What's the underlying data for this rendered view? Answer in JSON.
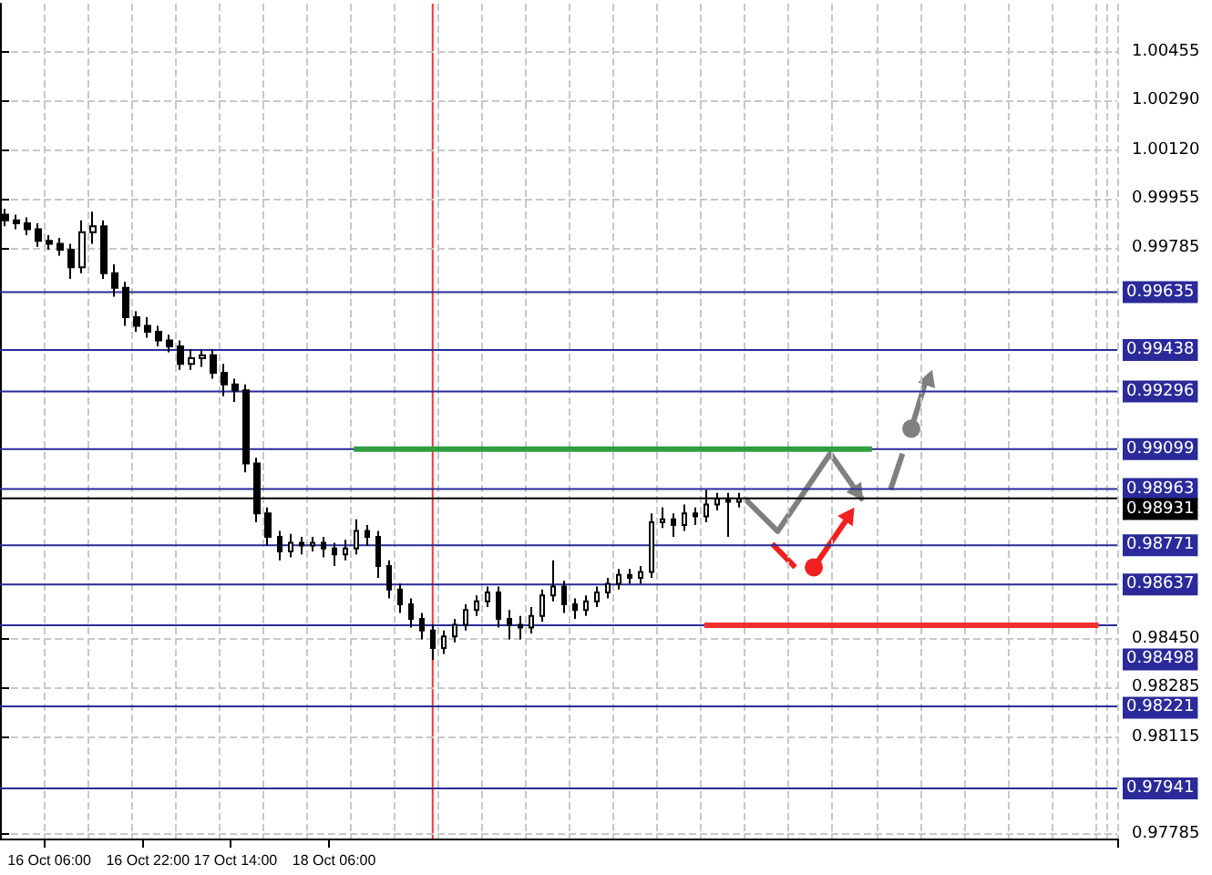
{
  "chart_data": {
    "type": "candlestick",
    "color": "#000000",
    "grid": true,
    "categories": [
      null,
      null,
      null,
      null,
      "16 Oct 06:00",
      null,
      null,
      null,
      null,
      null,
      null,
      null,
      null,
      "16 Oct 22:00",
      null,
      null,
      null,
      null,
      null,
      null,
      null,
      "17 Oct 14:00",
      null,
      null,
      null,
      null,
      null,
      null,
      null,
      null,
      "18 Oct 06:00",
      null,
      null,
      null,
      null,
      null,
      null,
      null,
      null,
      null,
      null,
      null,
      null,
      null,
      null,
      null,
      null,
      null,
      null,
      null,
      null,
      null,
      null,
      null,
      null,
      null,
      null,
      null,
      null,
      null,
      null,
      null,
      null,
      null,
      null,
      null,
      null,
      null,
      null,
      null,
      null,
      null,
      null,
      null,
      null,
      null,
      null,
      null,
      null,
      null,
      null,
      null,
      null,
      null,
      null,
      null,
      null,
      null,
      null,
      null,
      null,
      null,
      null,
      null,
      null,
      null,
      null,
      null,
      null,
      null,
      null,
      null
    ],
    "ohlc": [
      [
        0.999,
        0.9992,
        0.9986,
        0.9988
      ],
      [
        0.9988,
        0.999,
        0.9985,
        0.9987
      ],
      [
        0.9987,
        0.9989,
        0.9983,
        0.9985
      ],
      [
        0.9985,
        0.9987,
        0.9979,
        0.9981
      ],
      [
        0.9981,
        0.9983,
        0.9978,
        0.998
      ],
      [
        0.998,
        0.9982,
        0.9976,
        0.9978
      ],
      [
        0.9978,
        0.998,
        0.9968,
        0.9972
      ],
      [
        0.9972,
        0.9988,
        0.997,
        0.9984
      ],
      [
        0.9984,
        0.9991,
        0.998,
        0.9986
      ],
      [
        0.9986,
        0.9988,
        0.9968,
        0.997
      ],
      [
        0.997,
        0.9973,
        0.9962,
        0.9965
      ],
      [
        0.9965,
        0.9967,
        0.9952,
        0.9955
      ],
      [
        0.9955,
        0.9957,
        0.995,
        0.9952
      ],
      [
        0.9952,
        0.9955,
        0.9948,
        0.995
      ],
      [
        0.995,
        0.9952,
        0.9945,
        0.9947
      ],
      [
        0.9947,
        0.9949,
        0.9943,
        0.9945
      ],
      [
        0.9945,
        0.9947,
        0.9937,
        0.9939
      ],
      [
        0.9939,
        0.9944,
        0.9937,
        0.9941
      ],
      [
        0.9941,
        0.9944,
        0.9938,
        0.9942
      ],
      [
        0.9942,
        0.9944,
        0.9934,
        0.9936
      ],
      [
        0.9936,
        0.9939,
        0.9928,
        0.9932
      ],
      [
        0.9932,
        0.9934,
        0.9926,
        0.993
      ],
      [
        0.993,
        0.9932,
        0.9902,
        0.9905
      ],
      [
        0.9905,
        0.9907,
        0.9885,
        0.9888
      ],
      [
        0.9888,
        0.989,
        0.9877,
        0.988
      ],
      [
        0.988,
        0.9882,
        0.9872,
        0.9875
      ],
      [
        0.9875,
        0.9881,
        0.9873,
        0.9878
      ],
      [
        0.9878,
        0.988,
        0.9874,
        0.9877
      ],
      [
        0.9877,
        0.988,
        0.9875,
        0.9878
      ],
      [
        0.9878,
        0.988,
        0.9873,
        0.9876
      ],
      [
        0.9876,
        0.9878,
        0.987,
        0.9874
      ],
      [
        0.9874,
        0.9879,
        0.9872,
        0.9876
      ],
      [
        0.9876,
        0.9886,
        0.9874,
        0.9882
      ],
      [
        0.9882,
        0.9884,
        0.9877,
        0.988
      ],
      [
        0.988,
        0.9882,
        0.9866,
        0.987
      ],
      [
        0.987,
        0.9872,
        0.9859,
        0.9862
      ],
      [
        0.9862,
        0.9864,
        0.9854,
        0.9857
      ],
      [
        0.9857,
        0.9859,
        0.9849,
        0.9852
      ],
      [
        0.9852,
        0.9854,
        0.9845,
        0.9848
      ],
      [
        0.9848,
        0.985,
        0.9838,
        0.9842
      ],
      [
        0.9842,
        0.9848,
        0.984,
        0.9846
      ],
      [
        0.9846,
        0.9852,
        0.9844,
        0.985
      ],
      [
        0.985,
        0.9857,
        0.9848,
        0.9855
      ],
      [
        0.9855,
        0.986,
        0.9853,
        0.9858
      ],
      [
        0.9858,
        0.9863,
        0.9856,
        0.9861
      ],
      [
        0.9861,
        0.9863,
        0.9849,
        0.9852
      ],
      [
        0.9852,
        0.9855,
        0.9845,
        0.985
      ],
      [
        0.985,
        0.9853,
        0.9845,
        0.9849
      ],
      [
        0.9849,
        0.9856,
        0.9847,
        0.9853
      ],
      [
        0.9853,
        0.9862,
        0.9851,
        0.986
      ],
      [
        0.986,
        0.9872,
        0.9858,
        0.9863
      ],
      [
        0.9863,
        0.9865,
        0.9854,
        0.9857
      ],
      [
        0.9857,
        0.9859,
        0.9852,
        0.9855
      ],
      [
        0.9855,
        0.986,
        0.9853,
        0.9858
      ],
      [
        0.9858,
        0.9863,
        0.9856,
        0.9861
      ],
      [
        0.9861,
        0.9866,
        0.9859,
        0.9864
      ],
      [
        0.9864,
        0.9869,
        0.9862,
        0.9867
      ],
      [
        0.9867,
        0.9869,
        0.9864,
        0.9866
      ],
      [
        0.9866,
        0.987,
        0.9864,
        0.9868
      ],
      [
        0.9868,
        0.9888,
        0.9866,
        0.9885
      ],
      [
        0.9885,
        0.989,
        0.9883,
        0.9886
      ],
      [
        0.9886,
        0.9888,
        0.988,
        0.9884
      ],
      [
        0.9884,
        0.9891,
        0.9882,
        0.9888
      ],
      [
        0.9888,
        0.989,
        0.9884,
        0.9887
      ],
      [
        0.9887,
        0.9896,
        0.9885,
        0.9891
      ],
      [
        0.9891,
        0.9895,
        0.9889,
        0.9893
      ],
      [
        0.9893,
        0.9895,
        0.988,
        0.9892
      ],
      [
        0.9892,
        0.9895,
        0.989,
        0.9893
      ],
      null,
      null,
      null,
      null,
      null,
      null,
      null,
      null,
      null,
      null,
      null,
      null,
      null,
      null,
      null,
      null,
      null,
      null,
      null,
      null,
      null,
      null,
      null,
      null,
      null,
      null,
      null,
      null,
      null,
      null,
      null,
      null,
      null,
      null
    ],
    "ylim": [
      0.9777,
      1.0062
    ],
    "yticks": [
      1.00455,
      {
        "value": 1.0029,
        "label": "1.00290"
      },
      {
        "value": 1.0012,
        "label": "1.00120"
      },
      0.99955,
      0.99785,
      {
        "value": 0.9845,
        "label": "0.98450"
      },
      0.98285,
      0.98115,
      0.97785
    ],
    "ref_lines": [
      {
        "axis": "y",
        "value": 0.99635,
        "label": "0.99635",
        "color": "#2a2a9a"
      },
      {
        "axis": "y",
        "value": 0.99438,
        "label": "0.99438",
        "color": "#2a2a9a"
      },
      {
        "axis": "y",
        "value": 0.99296,
        "label": "0.99296",
        "color": "#2a2a9a"
      },
      {
        "axis": "y",
        "value": 0.99099,
        "label": "0.99099",
        "color": "#2a2a9a"
      },
      {
        "axis": "y",
        "value": 0.98963,
        "label": "0.98963",
        "color": "#2a2a9a"
      },
      {
        "axis": "y",
        "value": 0.98931,
        "label": "0.98931",
        "color": "#000000"
      },
      {
        "axis": "y",
        "value": 0.98771,
        "label": "0.98771",
        "color": "#2a2a9a"
      },
      {
        "axis": "y",
        "value": 0.98637,
        "label": "0.98637",
        "color": "#2a2a9a"
      },
      {
        "axis": "y",
        "value": 0.98498,
        "label": "0.98498",
        "color": "#2a2a9a"
      },
      {
        "axis": "y",
        "value": 0.98221,
        "label": "0.98221",
        "color": "#2a2a9a"
      },
      {
        "axis": "y",
        "value": 0.97941,
        "label": "0.97941",
        "color": "#2a2a9a"
      },
      {
        "axis": "y",
        "value": 0.99099,
        "color": "#2e9e3e"
      },
      {
        "axis": "y",
        "value": 0.98498,
        "color": "#f03030"
      }
    ]
  }
}
